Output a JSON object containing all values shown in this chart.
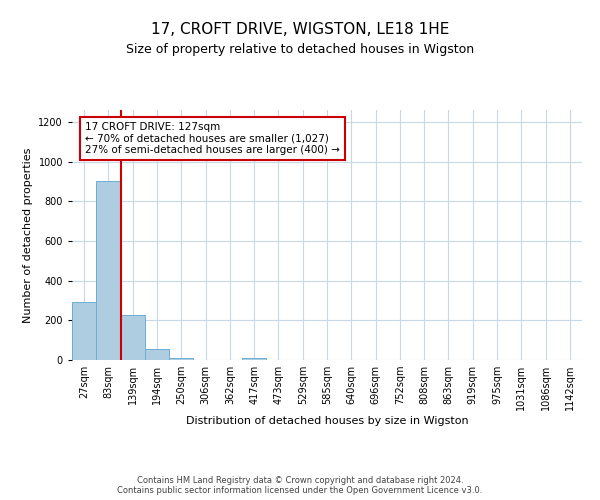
{
  "title": "17, CROFT DRIVE, WIGSTON, LE18 1HE",
  "subtitle": "Size of property relative to detached houses in Wigston",
  "xlabel": "Distribution of detached houses by size in Wigston",
  "ylabel": "Number of detached properties",
  "bar_labels": [
    "27sqm",
    "83sqm",
    "139sqm",
    "194sqm",
    "250sqm",
    "306sqm",
    "362sqm",
    "417sqm",
    "473sqm",
    "529sqm",
    "585sqm",
    "640sqm",
    "696sqm",
    "752sqm",
    "808sqm",
    "863sqm",
    "919sqm",
    "975sqm",
    "1031sqm",
    "1086sqm",
    "1142sqm"
  ],
  "bar_values": [
    290,
    900,
    225,
    55,
    10,
    0,
    0,
    10,
    0,
    0,
    0,
    0,
    0,
    0,
    0,
    0,
    0,
    0,
    0,
    0,
    0
  ],
  "bar_color": "#aecde1",
  "bar_edge_color": "#6aaed6",
  "ylim": [
    0,
    1260
  ],
  "yticks": [
    0,
    200,
    400,
    600,
    800,
    1000,
    1200
  ],
  "vline_color": "#cc0000",
  "annotation_text": "17 CROFT DRIVE: 127sqm\n← 70% of detached houses are smaller (1,027)\n27% of semi-detached houses are larger (400) →",
  "annotation_box_color": "#ffffff",
  "annotation_box_edge_color": "#cc0000",
  "footer_line1": "Contains HM Land Registry data © Crown copyright and database right 2024.",
  "footer_line2": "Contains public sector information licensed under the Open Government Licence v3.0.",
  "background_color": "#ffffff",
  "grid_color": "#c8d8e8",
  "title_fontsize": 11,
  "subtitle_fontsize": 9,
  "xlabel_fontsize": 8,
  "ylabel_fontsize": 8,
  "tick_fontsize": 7,
  "footer_fontsize": 6,
  "annotation_fontsize": 7.5
}
